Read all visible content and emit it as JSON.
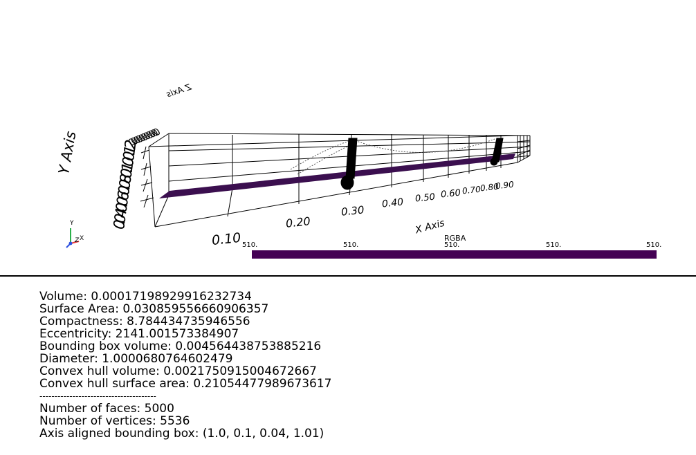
{
  "viewport": {
    "x_axis_title": "X Axis",
    "y_axis_title": "Y Axis",
    "z_axis_title_mirrored": "Z Axis",
    "x_ticks": [
      "0.10",
      "0.20",
      "0.30",
      "0.40",
      "0.50",
      "0.60",
      "0.70",
      "0.80",
      "0.90"
    ],
    "y_ticks_overlapped": "0.040.060.080.100.12",
    "y_ticks_overlapped_prefix": "0.",
    "z_ticks_overlapped": "0.0000000000",
    "orientation_widget": {
      "x": "X",
      "y": "Y",
      "z": "Z"
    },
    "mesh_color": "#3b0f4f",
    "scalar_bar": {
      "title": "RGBA",
      "labels": [
        "510.",
        "510.",
        "510.",
        "510.",
        "510."
      ],
      "color": "#440154"
    }
  },
  "stats": {
    "lines": [
      "Volume: 0.00017198929916232734",
      "Surface Area: 0.030859556660906357",
      "Compactness: 8.784434735946556",
      "Eccentricity: 2141.001573384907",
      "Bounding box volume: 0.00456443875388521­6",
      "Diameter: 1.0000680764602479",
      "Convex hull volume: 0.0021750915004672667",
      "Convex hull surface area: 0.21054477989673617",
      "---------------------------------------",
      "Number of faces: 5000",
      "Number of vertices: 5536",
      "Axis aligned bounding box: (1.0, 0.1, 0.04, 1.01)"
    ]
  }
}
